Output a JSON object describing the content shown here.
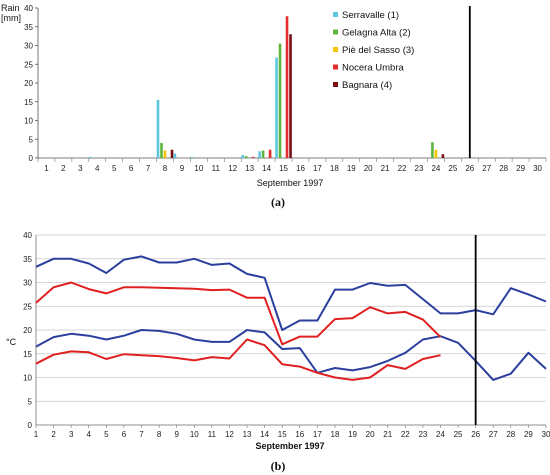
{
  "figure": {
    "caption_a": "(a)",
    "caption_b": "(b)"
  },
  "chart_data": [
    {
      "type": "bar",
      "ylabel": "Rain [mm]",
      "ylabel_lines": [
        "Rain",
        "[mm]"
      ],
      "xlabel": "September 1997",
      "ylim": [
        0,
        40
      ],
      "yticks": [
        0,
        5,
        10,
        15,
        20,
        25,
        30,
        35,
        40
      ],
      "categories": [
        1,
        2,
        3,
        4,
        5,
        6,
        7,
        8,
        9,
        10,
        11,
        12,
        13,
        14,
        15,
        16,
        17,
        18,
        19,
        20,
        21,
        22,
        23,
        24,
        25,
        26,
        27,
        28,
        29,
        30
      ],
      "vline_x": 26,
      "legend_position": "top-right",
      "series": [
        {
          "name": "Serravalle (1)",
          "color": "#5BC8DE",
          "values": [
            0,
            0,
            0,
            0.3,
            0,
            0,
            0,
            15.5,
            1.2,
            0.3,
            0,
            0,
            0.8,
            1.8,
            26.8,
            0,
            0,
            0,
            0,
            0,
            0,
            0,
            0,
            0,
            0,
            0,
            0,
            0,
            0,
            0
          ]
        },
        {
          "name": "Gelagna Alta (2)",
          "color": "#5DB53C",
          "values": [
            0,
            0,
            0,
            0,
            0,
            0,
            0,
            4,
            0,
            0,
            0,
            0,
            0.5,
            2,
            30.5,
            0,
            0,
            0,
            0,
            0,
            0,
            0,
            0,
            4.2,
            0,
            0,
            0,
            0,
            0,
            0
          ]
        },
        {
          "name": "Piè del Sasso (3)",
          "color": "#F5C400",
          "values": [
            0,
            0,
            0,
            0,
            0,
            0,
            0,
            2,
            0,
            0,
            0,
            0,
            0,
            0,
            0,
            0,
            0,
            0,
            0,
            0,
            0,
            0,
            0,
            2.2,
            0,
            0,
            0,
            0,
            0,
            0
          ]
        },
        {
          "name": "Nocera Umbra",
          "color": "#E52B2B",
          "values": [
            0,
            0,
            0,
            0,
            0,
            0,
            0,
            0,
            0,
            0,
            0,
            0,
            0.3,
            2.2,
            37.8,
            0,
            0,
            0,
            0,
            0,
            0,
            0,
            0,
            0,
            0,
            0,
            0,
            0,
            0,
            0
          ]
        },
        {
          "name": "Bagnara (4)",
          "color": "#7A0F14",
          "values": [
            0,
            0,
            0,
            0,
            0,
            0,
            0,
            2.2,
            0,
            0,
            0,
            0,
            0,
            0,
            33,
            0,
            0,
            0,
            0,
            0,
            0,
            0,
            0,
            1,
            0,
            0,
            0,
            0,
            0,
            0
          ]
        }
      ]
    },
    {
      "type": "line",
      "ylabel": "°C",
      "xlabel": "September 1997",
      "ylim": [
        0,
        40
      ],
      "yticks": [
        0,
        5,
        10,
        15,
        20,
        25,
        30,
        35,
        40
      ],
      "x": [
        1,
        2,
        3,
        4,
        5,
        6,
        7,
        8,
        9,
        10,
        11,
        12,
        13,
        14,
        15,
        16,
        17,
        18,
        19,
        20,
        21,
        22,
        23,
        24,
        25,
        26,
        27,
        28,
        29,
        30
      ],
      "vline_x": 26,
      "series": [
        {
          "color": "#2B3F9E",
          "values": [
            33.3,
            35,
            35,
            34,
            32,
            34.8,
            35.5,
            34.2,
            34.2,
            35,
            33.7,
            34,
            31.8,
            31,
            20,
            22,
            22,
            28.5,
            28.5,
            29.9,
            29.3,
            29.5,
            26.5,
            23.5,
            23.5,
            24.2,
            23.3,
            28.8,
            27.5,
            26
          ]
        },
        {
          "color": "#2B3F9E",
          "values": [
            16.5,
            18.5,
            19.2,
            18.8,
            18,
            18.8,
            20,
            19.8,
            19.2,
            18,
            17.5,
            17.5,
            20,
            19.5,
            16,
            16.2,
            11,
            12,
            11.5,
            12.2,
            13.5,
            15.2,
            18,
            18.7,
            17.3,
            13.5,
            9.5,
            10.8,
            15.2,
            11.8
          ]
        },
        {
          "color": "#E02020",
          "values": [
            25.7,
            29,
            30,
            28.6,
            27.7,
            29,
            29,
            28.9,
            28.8,
            28.7,
            28.4,
            28.5,
            26.8,
            26.8,
            17,
            18.6,
            18.6,
            22.3,
            22.5,
            24.8,
            23.5,
            23.8,
            22.2,
            18.5,
            null,
            null,
            null,
            null,
            null,
            null
          ]
        },
        {
          "color": "#E02020",
          "values": [
            12.9,
            14.8,
            15.5,
            15.3,
            13.9,
            14.9,
            14.7,
            14.5,
            14.1,
            13.6,
            14.3,
            14,
            18,
            16.8,
            12.8,
            12.3,
            11,
            10,
            9.5,
            10,
            12.6,
            11.8,
            13.9,
            14.7,
            null,
            null,
            null,
            null,
            null,
            null
          ]
        }
      ]
    }
  ]
}
